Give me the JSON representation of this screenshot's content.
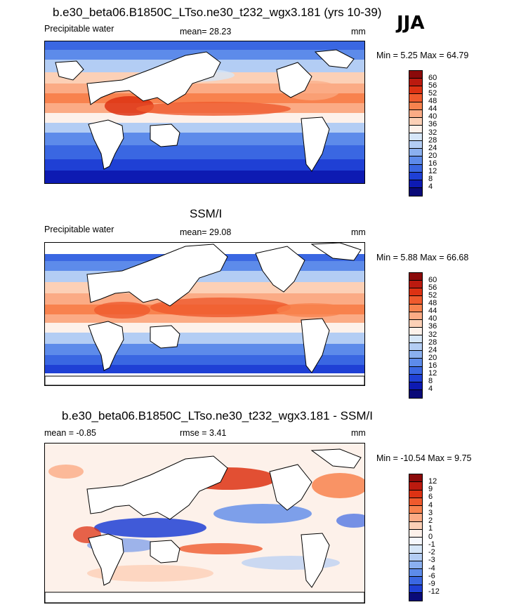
{
  "season": "JJA",
  "panels": [
    {
      "title": "b.e30_beta06.B1850C_LTso.ne30_t232_wgx3.181 (yrs 10-39)",
      "left_label": "Precipitable water",
      "center_label": "mean=  28.23",
      "right_label": "mm",
      "minmax": "Min =   5.25 Max =  64.79"
    },
    {
      "title": "SSM/I",
      "left_label": "Precipitable water",
      "center_label": "mean=  29.08",
      "right_label": "mm",
      "minmax": "Min =   5.88 Max =  66.68"
    },
    {
      "title": "b.e30_beta06.B1850C_LTso.ne30_t232_wgx3.181 - SSM/I",
      "left_label": "mean = -0.85",
      "center_label": "rmse =   3.41",
      "right_label": "mm",
      "minmax": "Min = -10.54 Max =   9.75"
    }
  ],
  "colorbars": {
    "field_levels": [
      "60",
      "56",
      "52",
      "48",
      "44",
      "40",
      "36",
      "32",
      "28",
      "24",
      "20",
      "16",
      "12",
      "8",
      "4"
    ],
    "field_colors": [
      "#8b0a0a",
      "#bb1a0f",
      "#dd3213",
      "#ef5a2d",
      "#f8824e",
      "#fbab85",
      "#fcd0b6",
      "#fdf1ea",
      "#d6e6f8",
      "#b3cdf4",
      "#8bb0ef",
      "#5d8bea",
      "#3a67e2",
      "#1f40d5",
      "#0d1ab2",
      "#0a0a78"
    ],
    "diff_levels": [
      "12",
      "9",
      "6",
      "4",
      "3",
      "2",
      "1",
      "0",
      "-1",
      "-2",
      "-3",
      "-4",
      "-6",
      "-9",
      "-12"
    ],
    "diff_colors": [
      "#8b0a0a",
      "#bb1a0f",
      "#dd3213",
      "#ef5a2d",
      "#f8824e",
      "#fbab85",
      "#fcd0b6",
      "#fdf1ea",
      "#f5f8fd",
      "#d6e6f8",
      "#b3cdf4",
      "#8bb0ef",
      "#5d8bea",
      "#3a67e2",
      "#1f40d5",
      "#0a0a78"
    ]
  }
}
